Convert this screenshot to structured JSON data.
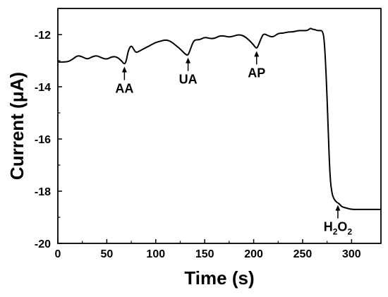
{
  "chart_data": {
    "type": "line",
    "xlabel": "Time (s)",
    "ylabel": "Current (μA)",
    "xlim": [
      0,
      330
    ],
    "ylim": [
      -20,
      -11
    ],
    "x_ticks": [
      0,
      50,
      100,
      150,
      200,
      250,
      300
    ],
    "y_ticks": [
      -20,
      -18,
      -16,
      -14,
      -12
    ],
    "x_tick_labels": [
      "0",
      "50",
      "100",
      "150",
      "200",
      "250",
      "300"
    ],
    "y_tick_labels": [
      "-20",
      "-18",
      "-16",
      "-14",
      "-12"
    ],
    "grid": false,
    "series": [
      {
        "x": [
          0,
          10,
          15,
          20,
          25,
          30,
          35,
          40,
          45,
          50,
          55,
          60,
          65,
          68,
          70,
          72,
          75,
          78,
          80,
          85,
          90,
          95,
          100,
          105,
          110,
          115,
          120,
          125,
          130,
          133,
          135,
          138,
          140,
          145,
          150,
          155,
          160,
          165,
          170,
          175,
          180,
          185,
          190,
          195,
          200,
          203,
          205,
          207,
          210,
          215,
          220,
          225,
          230,
          235,
          240,
          245,
          250,
          255,
          258,
          260,
          262,
          265,
          268,
          270,
          272,
          274,
          276,
          278,
          280,
          282,
          284,
          286,
          288,
          290,
          295,
          300,
          310,
          320,
          330
        ],
        "y": [
          -13.05,
          -13.05,
          -12.95,
          -12.8,
          -12.85,
          -12.95,
          -12.85,
          -12.8,
          -12.9,
          -12.95,
          -12.85,
          -12.85,
          -13.0,
          -13.15,
          -13.0,
          -12.6,
          -12.4,
          -12.6,
          -12.7,
          -12.6,
          -12.5,
          -12.4,
          -12.3,
          -12.25,
          -12.2,
          -12.25,
          -12.4,
          -12.55,
          -12.75,
          -12.8,
          -12.6,
          -12.3,
          -12.2,
          -12.2,
          -12.1,
          -12.15,
          -12.15,
          -12.05,
          -12.05,
          -12.1,
          -12.05,
          -12.0,
          -12.05,
          -12.2,
          -12.4,
          -12.55,
          -12.4,
          -12.2,
          -11.95,
          -12.05,
          -12.1,
          -11.95,
          -11.95,
          -11.9,
          -11.9,
          -11.85,
          -11.85,
          -11.85,
          -11.75,
          -11.8,
          -11.8,
          -11.85,
          -11.85,
          -11.85,
          -12.1,
          -13.5,
          -15.5,
          -17.5,
          -18.1,
          -18.3,
          -18.4,
          -18.45,
          -18.5,
          -18.6,
          -18.65,
          -18.7,
          -18.7,
          -18.7,
          -18.7
        ]
      }
    ],
    "annotations": [
      {
        "label": "AA",
        "x": 68,
        "y": -13.15
      },
      {
        "label": "UA",
        "x": 133,
        "y": -12.8
      },
      {
        "label": "AP",
        "x": 203,
        "y": -12.55
      },
      {
        "label": "H",
        "sub1": "2",
        "label2": "O",
        "sub2": "2",
        "x": 286,
        "y": -18.45
      }
    ]
  }
}
